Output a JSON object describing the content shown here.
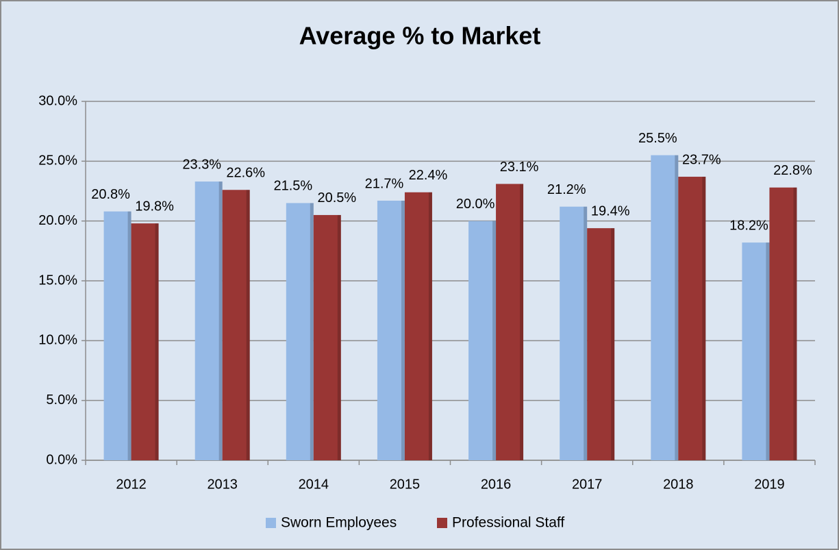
{
  "chart_data": {
    "type": "bar",
    "title": "Average % to Market",
    "categories": [
      "2012",
      "2013",
      "2014",
      "2015",
      "2016",
      "2017",
      "2018",
      "2019"
    ],
    "series": [
      {
        "name": "Sworn Employees",
        "color": "#95b9e6",
        "values": [
          20.8,
          23.3,
          21.5,
          21.7,
          20.0,
          21.2,
          25.5,
          18.2
        ],
        "value_labels": [
          "20.8%",
          "23.3%",
          "21.5%",
          "21.7%",
          "20.0%",
          "21.2%",
          "25.5%",
          "18.2%"
        ]
      },
      {
        "name": "Professional Staff",
        "color": "#993634",
        "values": [
          19.8,
          22.6,
          20.5,
          22.4,
          23.1,
          19.4,
          23.7,
          22.8
        ],
        "value_labels": [
          "19.8%",
          "22.6%",
          "20.5%",
          "22.4%",
          "23.1%",
          "19.4%",
          "23.7%",
          "22.8%"
        ]
      }
    ],
    "ylim": [
      0,
      30
    ],
    "yticks": [
      {
        "value": 0,
        "label": "0.0%"
      },
      {
        "value": 5,
        "label": "5.0%"
      },
      {
        "value": 10,
        "label": "10.0%"
      },
      {
        "value": 15,
        "label": "15.0%"
      },
      {
        "value": 20,
        "label": "20.0%"
      },
      {
        "value": 25,
        "label": "25.0%"
      },
      {
        "value": 30,
        "label": "30.0%"
      }
    ],
    "grid": true,
    "legend": "bottom"
  }
}
